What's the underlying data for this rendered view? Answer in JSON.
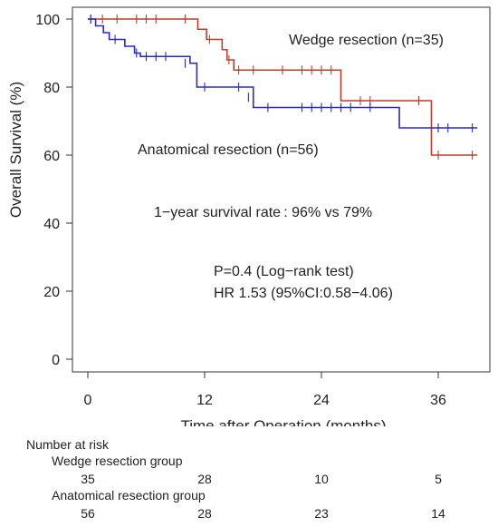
{
  "chart_data": {
    "type": "line",
    "title": "",
    "xlabel": "Time after Operation (months)",
    "ylabel": "Overall Survival (%)",
    "xlim": [
      -2,
      40
    ],
    "ylim": [
      -5,
      102
    ],
    "xticks": [
      0,
      12,
      24,
      36
    ],
    "yticks": [
      0,
      20,
      40,
      60,
      80,
      100
    ],
    "grid": false,
    "series": [
      {
        "name": "Wedge resection (n=35)",
        "color": "#b5402e",
        "label_color": "#c2412b",
        "steps": [
          [
            0,
            100
          ],
          [
            11.3,
            97
          ],
          [
            12.2,
            94
          ],
          [
            13.8,
            91
          ],
          [
            14.3,
            88
          ],
          [
            15,
            85
          ],
          [
            26,
            76
          ],
          [
            35.3,
            60
          ],
          [
            40,
            60
          ]
        ],
        "censored": [
          [
            0.3,
            100
          ],
          [
            1.5,
            100
          ],
          [
            3,
            100
          ],
          [
            5,
            100
          ],
          [
            6,
            100
          ],
          [
            7,
            100
          ],
          [
            10,
            100
          ],
          [
            12.5,
            94
          ],
          [
            14.5,
            88
          ],
          [
            15.5,
            85
          ],
          [
            17,
            85
          ],
          [
            20,
            85
          ],
          [
            22,
            85
          ],
          [
            23,
            85
          ],
          [
            24,
            85
          ],
          [
            25,
            85
          ],
          [
            28,
            76
          ],
          [
            29,
            76
          ],
          [
            34,
            76
          ],
          [
            36,
            60
          ],
          [
            39.5,
            60
          ]
        ]
      },
      {
        "name": "Anatomical resection (n=56)",
        "color": "#2b2bb5",
        "label_color": "#2b2bb5",
        "steps": [
          [
            0,
            100
          ],
          [
            0.8,
            98
          ],
          [
            1.6,
            96
          ],
          [
            2.2,
            94
          ],
          [
            3.8,
            92
          ],
          [
            4.8,
            90
          ],
          [
            5.4,
            89
          ],
          [
            10.5,
            87
          ],
          [
            11.2,
            80
          ],
          [
            17,
            74
          ],
          [
            32,
            68
          ],
          [
            40,
            68
          ]
        ],
        "censored": [
          [
            0.3,
            100
          ],
          [
            2.8,
            94
          ],
          [
            5,
            90
          ],
          [
            6,
            89
          ],
          [
            7,
            89
          ],
          [
            8,
            89
          ],
          [
            10,
            87
          ],
          [
            12,
            80
          ],
          [
            15.5,
            80
          ],
          [
            16.5,
            77
          ],
          [
            18.5,
            74
          ],
          [
            22,
            74
          ],
          [
            23,
            74
          ],
          [
            24,
            74
          ],
          [
            25,
            74
          ],
          [
            26,
            74
          ],
          [
            27,
            74
          ],
          [
            29,
            74
          ],
          [
            32,
            70
          ],
          [
            36,
            68
          ],
          [
            37,
            68
          ],
          [
            39.5,
            68
          ]
        ]
      }
    ],
    "annotations": [
      "1−year survival rate : 96% vs 79%",
      "P=0.4 (Log−rank test)",
      "HR 1.53 (95%CI:0.58−4.06)"
    ]
  },
  "risk_table": {
    "title": "Number at risk",
    "groups": [
      {
        "label": "Wedge resection group",
        "values": [
          "35",
          "28",
          "10",
          "5"
        ]
      },
      {
        "label": "Anatomical resection group",
        "values": [
          "56",
          "28",
          "23",
          "14"
        ]
      }
    ]
  }
}
